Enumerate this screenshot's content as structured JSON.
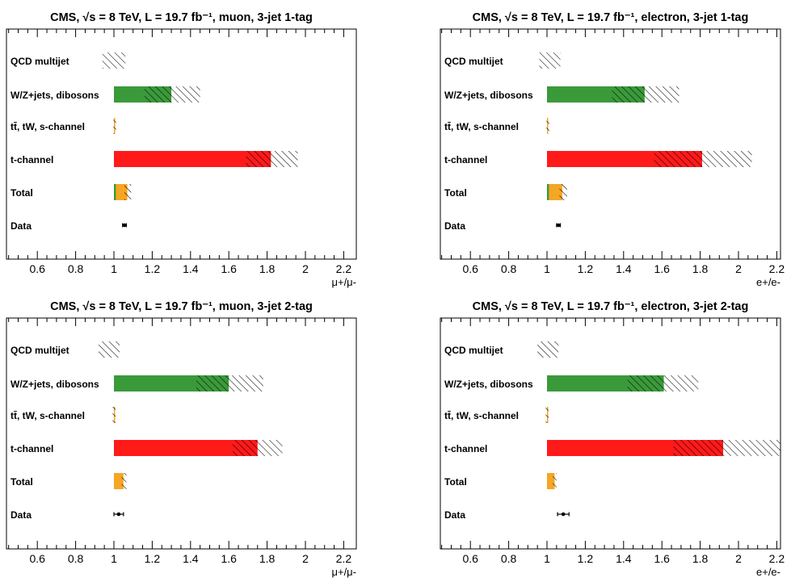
{
  "chart_data": [
    {
      "type": "bar",
      "title": "CMS, √s = 8 TeV, L = 19.7 fb⁻¹, muon, 3-jet 1-tag",
      "xlabel": "μ+/μ-",
      "xlim": [
        0.45,
        2.2
      ],
      "xticks": [
        "0.6",
        "0.8",
        "1",
        "1.2",
        "1.4",
        "1.6",
        "1.8",
        "2",
        "2.2"
      ],
      "categories": [
        "QCD multijet",
        "W/Z+jets, dibosons",
        "tt̄, tW, s-channel",
        "t-channel",
        "Total",
        "Data"
      ],
      "rows": [
        {
          "bar": null,
          "bar_color": null,
          "hatch": [
            0.94,
            1.06
          ]
        },
        {
          "bar": 1.3,
          "bar_color": "#3a9a3a",
          "hatch": [
            1.16,
            1.45
          ]
        },
        {
          "bar": 1.005,
          "bar_color": "#f5a623",
          "hatch": [
            0.997,
            1.012
          ]
        },
        {
          "bar": 1.82,
          "bar_color": "#ff1a1a",
          "hatch": [
            1.69,
            1.96
          ]
        },
        {
          "bar": 1.07,
          "bar_color": "#f5a623",
          "green_edge": 1.01,
          "hatch": [
            1.055,
            1.09
          ]
        },
        {
          "data_point": 1.055,
          "data_err": 0.01
        }
      ]
    },
    {
      "type": "bar",
      "title": "CMS, √s = 8 TeV, L = 19.7 fb⁻¹, electron, 3-jet 1-tag",
      "xlabel": "e+/e-",
      "xlim": [
        0.45,
        2.2
      ],
      "xticks": [
        "0.6",
        "0.8",
        "1",
        "1.2",
        "1.4",
        "1.6",
        "1.8",
        "2",
        "2.2"
      ],
      "categories": [
        "QCD multijet",
        "W/Z+jets, dibosons",
        "tt̄, tW, s-channel",
        "t-channel",
        "Total",
        "Data"
      ],
      "rows": [
        {
          "bar": null,
          "bar_color": null,
          "hatch": [
            0.96,
            1.07
          ]
        },
        {
          "bar": 1.51,
          "bar_color": "#3a9a3a",
          "hatch": [
            1.34,
            1.69
          ]
        },
        {
          "bar": 1.005,
          "bar_color": "#f5a623",
          "hatch": [
            0.997,
            1.012
          ]
        },
        {
          "bar": 1.81,
          "bar_color": "#ff1a1a",
          "hatch": [
            1.56,
            2.07
          ]
        },
        {
          "bar": 1.08,
          "bar_color": "#f5a623",
          "green_edge": 1.01,
          "hatch": [
            1.065,
            1.105
          ]
        },
        {
          "data_point": 1.06,
          "data_err": 0.01
        }
      ]
    },
    {
      "type": "bar",
      "title": "CMS, √s = 8 TeV, L = 19.7 fb⁻¹, muon, 3-jet 2-tag",
      "xlabel": "μ+/μ-",
      "xlim": [
        0.45,
        2.2
      ],
      "xticks": [
        "0.6",
        "0.8",
        "1",
        "1.2",
        "1.4",
        "1.6",
        "1.8",
        "2",
        "2.2"
      ],
      "categories": [
        "QCD multijet",
        "W/Z+jets, dibosons",
        "tt̄, tW, s-channel",
        "t-channel",
        "Total",
        "Data"
      ],
      "rows": [
        {
          "bar": null,
          "bar_color": null,
          "hatch": [
            0.92,
            1.03
          ]
        },
        {
          "bar": 1.6,
          "bar_color": "#3a9a3a",
          "hatch": [
            1.43,
            1.78
          ]
        },
        {
          "bar": 1.0,
          "bar_color": "#f5a623",
          "hatch": [
            0.993,
            1.008
          ]
        },
        {
          "bar": 1.75,
          "bar_color": "#ff1a1a",
          "hatch": [
            1.62,
            1.88
          ]
        },
        {
          "bar": 1.05,
          "bar_color": "#f5a623",
          "green_edge": null,
          "hatch": [
            1.04,
            1.065
          ]
        },
        {
          "data_point": 1.025,
          "data_err": 0.025
        }
      ]
    },
    {
      "type": "bar",
      "title": "CMS, √s = 8 TeV, L = 19.7 fb⁻¹, electron, 3-jet 2-tag",
      "xlabel": "e+/e-",
      "xlim": [
        0.45,
        2.2
      ],
      "xticks": [
        "0.6",
        "0.8",
        "1",
        "1.2",
        "1.4",
        "1.6",
        "1.8",
        "2",
        "2.2"
      ],
      "categories": [
        "QCD multijet",
        "W/Z+jets, dibosons",
        "tt̄, tW, s-channel",
        "t-channel",
        "Total",
        "Data"
      ],
      "rows": [
        {
          "bar": null,
          "bar_color": null,
          "hatch": [
            0.95,
            1.06
          ]
        },
        {
          "bar": 1.61,
          "bar_color": "#3a9a3a",
          "hatch": [
            1.42,
            1.79
          ]
        },
        {
          "bar": 1.0,
          "bar_color": "#f5a623",
          "hatch": [
            0.993,
            1.008
          ]
        },
        {
          "bar": 1.92,
          "bar_color": "#ff1a1a",
          "hatch": [
            1.66,
            2.22
          ]
        },
        {
          "bar": 1.04,
          "bar_color": "#f5a623",
          "green_edge": null,
          "hatch": [
            1.03,
            1.05
          ]
        },
        {
          "data_point": 1.085,
          "data_err": 0.03
        }
      ]
    }
  ]
}
